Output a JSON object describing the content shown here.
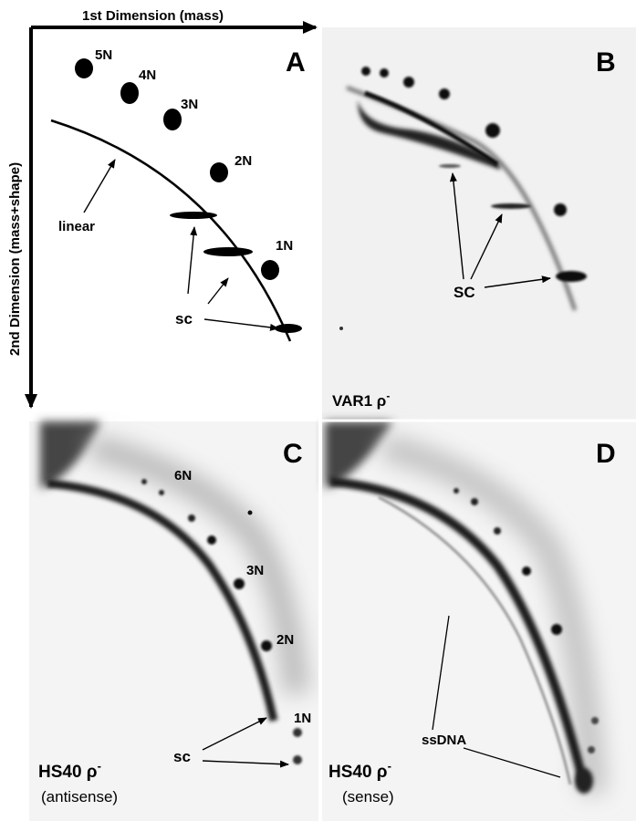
{
  "panel_a": {
    "letter": "A",
    "x_axis_label": "1st Dimension (mass)",
    "y_axis_label": "2nd Dimension (mass+shape)",
    "labels": {
      "n5": "5N",
      "n4": "4N",
      "n3": "3N",
      "n2": "2N",
      "n1": "1N",
      "linear": "linear",
      "sc": "sc"
    }
  },
  "panel_b": {
    "letter": "B",
    "sc_label": "SC",
    "strain_label": "VAR1 ρ",
    "superscript": "-"
  },
  "panel_c": {
    "letter": "C",
    "n6": "6N",
    "n3": "3N",
    "n2": "2N",
    "n1": "1N",
    "sc_label": "sc",
    "strain_label": "HS40 ρ",
    "superscript": "-",
    "orientation": "(antisense)"
  },
  "panel_d": {
    "letter": "D",
    "ssdna_label": "ssDNA",
    "strain_label": "HS40 ρ",
    "superscript": "-",
    "orientation": "(sense)"
  },
  "colors": {
    "ink": "#000000",
    "gel_background": "#f2f2f2"
  }
}
